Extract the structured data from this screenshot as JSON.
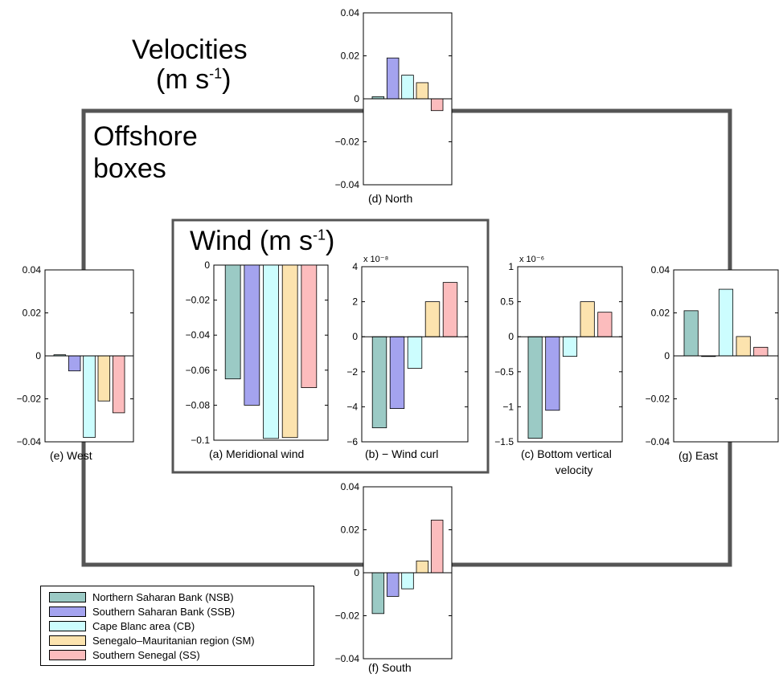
{
  "titles": {
    "velocities_line1": "Velocities",
    "velocities_unit": "(m s",
    "velocities_exp": "-1",
    "velocities_close": ")",
    "offshore_line1": "Offshore",
    "offshore_line2": "boxes",
    "wind_base": "Wind (m s",
    "wind_exp": "-1",
    "wind_close": ")"
  },
  "colors": {
    "NSB": "#9bcac5",
    "SSB": "#a4a3ef",
    "CB": "#ccfdfe",
    "SM": "#fce3ae",
    "SS": "#fcbcbd",
    "frame": "#555555"
  },
  "legend": [
    {
      "key": "NSB",
      "label": "Northern Saharan Bank (NSB)"
    },
    {
      "key": "SSB",
      "label": "Southern Saharan Bank (SSB)"
    },
    {
      "key": "CB",
      "label": "Cape Blanc area (CB)"
    },
    {
      "key": "SM",
      "label": "Senegalo–Mauritanian region (SM)"
    },
    {
      "key": "SS",
      "label": "Southern Senegal (SS)"
    }
  ],
  "chart_data": [
    {
      "id": "north",
      "type": "bar",
      "series_keys": [
        "NSB",
        "SSB",
        "CB",
        "SM",
        "SS"
      ],
      "values": [
        0.001,
        0.019,
        0.011,
        0.0075,
        -0.0055
      ],
      "ylim": [
        -0.04,
        0.04
      ],
      "yticks": [
        0.04,
        0.02,
        0,
        -0.02,
        -0.04
      ],
      "yticklabels": [
        "0.04",
        "0.02",
        "0",
        "−0.02",
        "−0.04"
      ],
      "caption": "(d) North",
      "exponent": ""
    },
    {
      "id": "west",
      "type": "bar",
      "series_keys": [
        "NSB",
        "SSB",
        "CB",
        "SM",
        "SS"
      ],
      "values": [
        0.0005,
        -0.007,
        -0.038,
        -0.021,
        -0.0265
      ],
      "ylim": [
        -0.04,
        0.04
      ],
      "yticks": [
        0.04,
        0.02,
        0,
        -0.02,
        -0.04
      ],
      "yticklabels": [
        "0.04",
        "0.02",
        "0",
        "−0.02",
        "−0.04"
      ],
      "caption": "(e)    West",
      "exponent": ""
    },
    {
      "id": "meridional",
      "type": "bar",
      "series_keys": [
        "NSB",
        "SSB",
        "CB",
        "SM",
        "SS"
      ],
      "values": [
        -0.065,
        -0.08,
        -0.099,
        -0.0985,
        -0.07
      ],
      "ylim": [
        -0.1,
        0
      ],
      "yticks": [
        0,
        -0.02,
        -0.04,
        -0.06,
        -0.08,
        -0.1
      ],
      "yticklabels": [
        "0",
        "−0.02",
        "−0.04",
        "−0.06",
        "−0.08",
        "−0.1"
      ],
      "caption": "(a)  Meridional wind",
      "exponent": ""
    },
    {
      "id": "windcurl",
      "type": "bar",
      "series_keys": [
        "NSB",
        "SSB",
        "CB",
        "SM",
        "SS"
      ],
      "values": [
        -5.2,
        -4.1,
        -1.8,
        2.0,
        3.1
      ],
      "ylim": [
        -6,
        4
      ],
      "yticks": [
        4,
        2,
        0,
        -2,
        -4,
        -6
      ],
      "yticklabels": [
        "4",
        "2",
        "0",
        "−2",
        "−4",
        "−6"
      ],
      "caption": "(b) − Wind curl",
      "exponent": "x 10⁻⁸"
    },
    {
      "id": "bottom",
      "type": "bar",
      "series_keys": [
        "NSB",
        "SSB",
        "CB",
        "SM",
        "SS"
      ],
      "values": [
        -1.45,
        -1.05,
        -0.28,
        0.5,
        0.35
      ],
      "ylim": [
        -1.5,
        1
      ],
      "yticks": [
        1,
        0.5,
        0,
        -0.5,
        -1,
        -1.5
      ],
      "yticklabels": [
        "1",
        "0.5",
        "0",
        "−0.5",
        "−1",
        "−1.5"
      ],
      "caption": "(c) Bottom vertical",
      "caption2": "velocity",
      "exponent": "x 10⁻⁶"
    },
    {
      "id": "east",
      "type": "bar",
      "series_keys": [
        "NSB",
        "SSB",
        "CB",
        "SM",
        "SS"
      ],
      "values": [
        0.021,
        -0.0003,
        0.031,
        0.009,
        0.004
      ],
      "ylim": [
        -0.04,
        0.04
      ],
      "yticks": [
        0.04,
        0.02,
        0,
        -0.02,
        -0.04
      ],
      "yticklabels": [
        "0.04",
        "0.02",
        "0",
        "−0.02",
        "−0.04"
      ],
      "caption": "(g)    East",
      "exponent": ""
    },
    {
      "id": "south",
      "type": "bar",
      "series_keys": [
        "NSB",
        "SSB",
        "CB",
        "SM",
        "SS"
      ],
      "values": [
        -0.019,
        -0.011,
        -0.0075,
        0.0055,
        0.0245
      ],
      "ylim": [
        -0.04,
        0.04
      ],
      "yticks": [
        0.04,
        0.02,
        0,
        -0.02,
        -0.04
      ],
      "yticklabels": [
        "0.04",
        "0.02",
        "0",
        "−0.02",
        "−0.04"
      ],
      "caption": "(f)  South",
      "exponent": ""
    }
  ]
}
